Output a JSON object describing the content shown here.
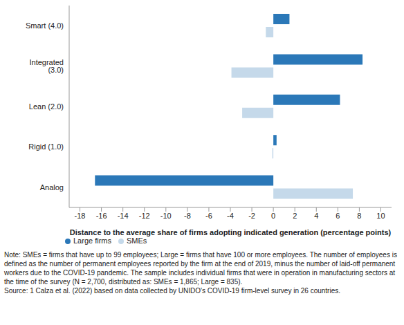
{
  "chart_data": {
    "type": "bar",
    "orientation": "horizontal",
    "categories": [
      "Smart (4.0)",
      "Integrated (3.0)",
      "Lean (2.0)",
      "Rigid (1.0)",
      "Analog"
    ],
    "series": [
      {
        "name": "Large firms",
        "color": "#2b78b8",
        "values": [
          1.5,
          8.3,
          6.2,
          0.3,
          -16.6
        ]
      },
      {
        "name": "SMEs",
        "color": "#c5d9ea",
        "values": [
          -0.7,
          -3.9,
          -2.9,
          -0.1,
          7.4
        ]
      }
    ],
    "x_label": "Distance to the average share of firms adopting indicated generation (percentage points)",
    "xlim": [
      -19,
      11
    ],
    "xticks": [
      -18,
      -16,
      -14,
      -12,
      -10,
      -8,
      -6,
      -4,
      -2,
      0,
      2,
      4,
      6,
      8,
      10
    ],
    "grid": false,
    "legend": "bottom-left",
    "note": "Note: SMEs = firms that have up to 99 employees; Large = firms that have 100 or more employees. The number of employees is defined as the number of permanent employees reported by the firm at the end of 2019, minus the number of laid-off permanent workers due to the COVID-19 pandemic. The sample includes individual firms that were in operation in manufacturing sectors at the time of the survey (N = 2,700, distributed as: SMEs = 1,865; Large = 835).",
    "source": "Source: 1 Calza et al. (2022) based on data collected by UNIDO's COVID-19 firm-level survey in 26 countries."
  }
}
